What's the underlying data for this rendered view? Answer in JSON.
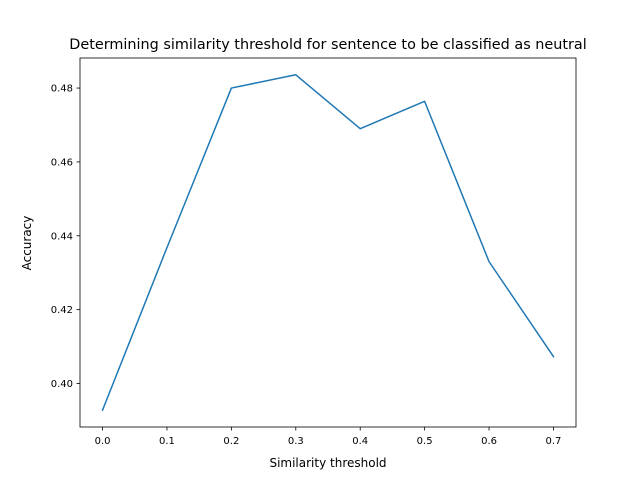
{
  "chart_data": {
    "type": "line",
    "title": "Determining similarity threshold for sentence to be classified as neutral",
    "xlabel": "Similarity threshold",
    "ylabel": "Accuracy",
    "x": [
      0.0,
      0.1,
      0.2,
      0.3,
      0.4,
      0.5,
      0.6,
      0.7
    ],
    "series": [
      {
        "values": [
          0.3928,
          0.4368,
          0.48,
          0.4836,
          0.469,
          0.4764,
          0.433,
          0.4073
        ],
        "color": "#1f77b4"
      }
    ],
    "xlim": [
      -0.035,
      0.735
    ],
    "ylim": [
      0.38822,
      0.48814
    ],
    "xticks": [
      0.0,
      0.1,
      0.2,
      0.3,
      0.4,
      0.5,
      0.6,
      0.7
    ],
    "xtick_labels": [
      "0.0",
      "0.1",
      "0.2",
      "0.3",
      "0.4",
      "0.5",
      "0.6",
      "0.7"
    ],
    "yticks": [
      0.4,
      0.42,
      0.44,
      0.46,
      0.48
    ],
    "ytick_labels": [
      "0.40",
      "0.42",
      "0.44",
      "0.46",
      "0.48"
    ],
    "grid": false,
    "legend": false
  }
}
